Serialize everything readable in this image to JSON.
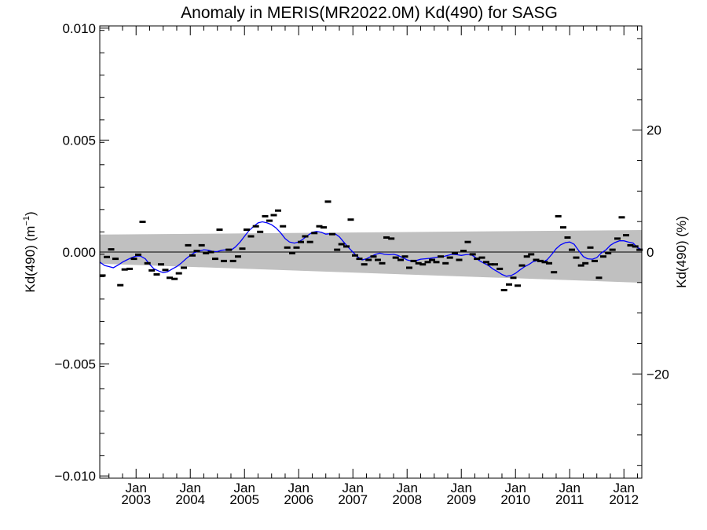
{
  "chart_data": {
    "type": "line",
    "title": "Anomaly in MERIS(MR2022.0M) Kd(490) for SASG",
    "ylabel_left": {
      "main": "Kd(490) (m",
      "sup": "−1",
      "close": ")"
    },
    "ylabel_right": "Kd(490) (%)",
    "xlim": [
      2002.33,
      2012.33
    ],
    "ylim": [
      -0.0101,
      0.0101
    ],
    "y2lim": [
      -37.1,
      37.1
    ],
    "yticks": [
      {
        "value": -0.01,
        "label": "−0.010"
      },
      {
        "value": -0.005,
        "label": "−0.005"
      },
      {
        "value": 0,
        "label": "0.000"
      },
      {
        "value": 0.005,
        "label": "0.005"
      },
      {
        "value": 0.01,
        "label": "0.010"
      }
    ],
    "y2ticks": [
      {
        "value": -20,
        "label": "−20"
      },
      {
        "value": 0,
        "label": "0"
      },
      {
        "value": 20,
        "label": "20"
      }
    ],
    "xticks": [
      {
        "value": 2003.0,
        "month": "Jan",
        "year": "2003"
      },
      {
        "value": 2004.0,
        "month": "Jan",
        "year": "2004"
      },
      {
        "value": 2005.0,
        "month": "Jan",
        "year": "2005"
      },
      {
        "value": 2006.0,
        "month": "Jan",
        "year": "2006"
      },
      {
        "value": 2007.0,
        "month": "Jan",
        "year": "2007"
      },
      {
        "value": 2008.0,
        "month": "Jan",
        "year": "2008"
      },
      {
        "value": 2009.0,
        "month": "Jan",
        "year": "2009"
      },
      {
        "value": 2010.0,
        "month": "Jan",
        "year": "2010"
      },
      {
        "value": 2011.0,
        "month": "Jan",
        "year": "2011"
      },
      {
        "value": 2012.0,
        "month": "Jan",
        "year": "2012"
      }
    ],
    "band": {
      "x": [
        2002.33,
        2012.33
      ],
      "upper": [
        0.00078,
        0.00098
      ],
      "lower": [
        -0.00052,
        -0.00137
      ],
      "color": "#c0c0c0"
    },
    "zero_line": 0,
    "monthly_anomalies": {
      "marker": "dash",
      "color": "#000000",
      "points": [
        [
          2002.38,
          -0.00105
        ],
        [
          2002.46,
          -0.00022
        ],
        [
          2002.54,
          0.00012
        ],
        [
          2002.62,
          -0.0003
        ],
        [
          2002.71,
          -0.00148
        ],
        [
          2002.79,
          -0.00078
        ],
        [
          2002.88,
          -0.00075
        ],
        [
          2002.96,
          -0.0003
        ],
        [
          2003.04,
          -0.00012
        ],
        [
          2003.12,
          0.00135
        ],
        [
          2003.21,
          -0.0005
        ],
        [
          2003.29,
          -0.00082
        ],
        [
          2003.38,
          -0.001
        ],
        [
          2003.46,
          -0.00055
        ],
        [
          2003.54,
          -0.0008
        ],
        [
          2003.62,
          -0.00115
        ],
        [
          2003.71,
          -0.0012
        ],
        [
          2003.79,
          -0.00095
        ],
        [
          2003.88,
          -0.0007
        ],
        [
          2003.96,
          0.0003
        ],
        [
          2004.04,
          -0.00015
        ],
        [
          2004.12,
          5e-05
        ],
        [
          2004.21,
          0.0003
        ],
        [
          2004.29,
          -5e-05
        ],
        [
          2004.38,
          0.0
        ],
        [
          2004.46,
          -0.0003
        ],
        [
          2004.54,
          0.001
        ],
        [
          2004.62,
          -0.0004
        ],
        [
          2004.71,
          0.0001
        ],
        [
          2004.79,
          -0.0004
        ],
        [
          2004.88,
          -0.0002
        ],
        [
          2004.96,
          0.00015
        ],
        [
          2005.04,
          0.001
        ],
        [
          2005.12,
          0.0007
        ],
        [
          2005.21,
          0.00115
        ],
        [
          2005.29,
          0.0009
        ],
        [
          2005.38,
          0.0016
        ],
        [
          2005.46,
          0.0014
        ],
        [
          2005.54,
          0.00165
        ],
        [
          2005.62,
          0.00185
        ],
        [
          2005.71,
          0.00115
        ],
        [
          2005.79,
          0.0002
        ],
        [
          2005.88,
          -5e-05
        ],
        [
          2005.96,
          0.0002
        ],
        [
          2006.04,
          0.00045
        ],
        [
          2006.12,
          0.0007
        ],
        [
          2006.21,
          0.00045
        ],
        [
          2006.29,
          0.00085
        ],
        [
          2006.38,
          0.00115
        ],
        [
          2006.46,
          0.0011
        ],
        [
          2006.54,
          0.00225
        ],
        [
          2006.62,
          0.0008
        ],
        [
          2006.71,
          0.0001
        ],
        [
          2006.79,
          0.00035
        ],
        [
          2006.88,
          0.00025
        ],
        [
          2006.96,
          0.00145
        ],
        [
          2007.04,
          -0.00015
        ],
        [
          2007.12,
          -0.0003
        ],
        [
          2007.21,
          -0.00055
        ],
        [
          2007.29,
          -0.00035
        ],
        [
          2007.38,
          -0.0002
        ],
        [
          2007.46,
          -0.00035
        ],
        [
          2007.54,
          -0.0005
        ],
        [
          2007.62,
          0.00065
        ],
        [
          2007.71,
          0.0006
        ],
        [
          2007.79,
          -0.00025
        ],
        [
          2007.88,
          -0.00035
        ],
        [
          2007.96,
          -0.0002
        ],
        [
          2008.04,
          -0.0007
        ],
        [
          2008.12,
          -0.0004
        ],
        [
          2008.21,
          -0.0005
        ],
        [
          2008.29,
          -0.00055
        ],
        [
          2008.38,
          -0.00045
        ],
        [
          2008.46,
          -0.00035
        ],
        [
          2008.54,
          -0.00045
        ],
        [
          2008.62,
          -0.0002
        ],
        [
          2008.71,
          -0.0005
        ],
        [
          2008.79,
          -0.00025
        ],
        [
          2008.88,
          -5e-05
        ],
        [
          2008.96,
          -0.00035
        ],
        [
          2009.04,
          5e-05
        ],
        [
          2009.12,
          0.00045
        ],
        [
          2009.21,
          -0.0001
        ],
        [
          2009.29,
          -0.0003
        ],
        [
          2009.38,
          -0.00025
        ],
        [
          2009.46,
          -0.00045
        ],
        [
          2009.54,
          -0.00055
        ],
        [
          2009.62,
          -0.00055
        ],
        [
          2009.71,
          -0.00075
        ],
        [
          2009.79,
          -0.0017
        ],
        [
          2009.88,
          -0.00145
        ],
        [
          2009.96,
          -0.00115
        ],
        [
          2010.04,
          -0.0015
        ],
        [
          2010.12,
          -0.0006
        ],
        [
          2010.21,
          -0.0002
        ],
        [
          2010.29,
          -0.0001
        ],
        [
          2010.38,
          -0.00035
        ],
        [
          2010.46,
          -0.0004
        ],
        [
          2010.54,
          -0.00045
        ],
        [
          2010.62,
          -0.0005
        ],
        [
          2010.71,
          -0.0009
        ],
        [
          2010.79,
          0.0016
        ],
        [
          2010.88,
          0.0011
        ],
        [
          2010.96,
          0.00065
        ],
        [
          2011.04,
          0.0001
        ],
        [
          2011.12,
          -0.00025
        ],
        [
          2011.21,
          -0.0006
        ],
        [
          2011.29,
          -0.0005
        ],
        [
          2011.38,
          0.0002
        ],
        [
          2011.46,
          -0.0004
        ],
        [
          2011.54,
          -0.00115
        ],
        [
          2011.62,
          -0.0002
        ],
        [
          2011.71,
          -5e-05
        ],
        [
          2011.79,
          0.0001
        ],
        [
          2011.88,
          0.0006
        ],
        [
          2011.96,
          0.00155
        ],
        [
          2012.04,
          0.00075
        ],
        [
          2012.12,
          0.0003
        ],
        [
          2012.21,
          0.00025
        ],
        [
          2012.29,
          0.0001
        ]
      ]
    },
    "smoothed_series": {
      "color": "#0000ff",
      "points": [
        [
          2002.33,
          -0.00045
        ],
        [
          2002.42,
          -0.0006
        ],
        [
          2002.5,
          -0.00065
        ],
        [
          2002.58,
          -0.0007
        ],
        [
          2002.67,
          -0.00058
        ],
        [
          2002.75,
          -0.00045
        ],
        [
          2002.83,
          -0.00035
        ],
        [
          2002.92,
          -0.00025
        ],
        [
          2003.0,
          -0.00018
        ],
        [
          2003.08,
          -0.00018
        ],
        [
          2003.17,
          -0.0003
        ],
        [
          2003.25,
          -0.00055
        ],
        [
          2003.33,
          -0.00075
        ],
        [
          2003.42,
          -0.00085
        ],
        [
          2003.5,
          -0.00092
        ],
        [
          2003.58,
          -0.00088
        ],
        [
          2003.67,
          -0.00075
        ],
        [
          2003.75,
          -0.00065
        ],
        [
          2003.83,
          -0.0005
        ],
        [
          2003.92,
          -0.0003
        ],
        [
          2004.0,
          -0.00015
        ],
        [
          2004.08,
          -2e-05
        ],
        [
          2004.17,
          5e-05
        ],
        [
          2004.25,
          0.0001
        ],
        [
          2004.33,
          8e-05
        ],
        [
          2004.42,
          2e-05
        ],
        [
          2004.5,
          2e-05
        ],
        [
          2004.58,
          8e-05
        ],
        [
          2004.67,
          0.0001
        ],
        [
          2004.75,
          8e-05
        ],
        [
          2004.83,
          0.00022
        ],
        [
          2004.92,
          0.00045
        ],
        [
          2005.0,
          0.0007
        ],
        [
          2005.08,
          0.00095
        ],
        [
          2005.17,
          0.00115
        ],
        [
          2005.25,
          0.0013
        ],
        [
          2005.33,
          0.00135
        ],
        [
          2005.42,
          0.0013
        ],
        [
          2005.5,
          0.00122
        ],
        [
          2005.58,
          0.00108
        ],
        [
          2005.67,
          0.00085
        ],
        [
          2005.75,
          0.0006
        ],
        [
          2005.83,
          0.00045
        ],
        [
          2005.92,
          0.0004
        ],
        [
          2006.0,
          0.00045
        ],
        [
          2006.08,
          0.00058
        ],
        [
          2006.17,
          0.00075
        ],
        [
          2006.25,
          0.00088
        ],
        [
          2006.33,
          0.00092
        ],
        [
          2006.42,
          0.00088
        ],
        [
          2006.5,
          0.0008
        ],
        [
          2006.58,
          0.00082
        ],
        [
          2006.67,
          0.00082
        ],
        [
          2006.75,
          0.00068
        ],
        [
          2006.83,
          0.00045
        ],
        [
          2006.92,
          0.0002
        ],
        [
          2007.0,
          0.0
        ],
        [
          2007.08,
          -0.0002
        ],
        [
          2007.17,
          -0.00035
        ],
        [
          2007.25,
          -0.0003
        ],
        [
          2007.33,
          -0.0002
        ],
        [
          2007.42,
          -0.0001
        ],
        [
          2007.5,
          -5e-05
        ],
        [
          2007.58,
          -0.0001
        ],
        [
          2007.67,
          -0.00012
        ],
        [
          2007.75,
          -0.0001
        ],
        [
          2007.83,
          -0.00015
        ],
        [
          2007.92,
          -0.00025
        ],
        [
          2008.0,
          -0.00035
        ],
        [
          2008.08,
          -0.0004
        ],
        [
          2008.17,
          -0.00038
        ],
        [
          2008.25,
          -0.00032
        ],
        [
          2008.33,
          -0.0003
        ],
        [
          2008.42,
          -0.00028
        ],
        [
          2008.5,
          -0.00025
        ],
        [
          2008.58,
          -0.00022
        ],
        [
          2008.67,
          -0.0002
        ],
        [
          2008.75,
          -0.00015
        ],
        [
          2008.83,
          -0.0001
        ],
        [
          2008.92,
          -0.00012
        ],
        [
          2009.0,
          -0.00015
        ],
        [
          2009.08,
          -0.00012
        ],
        [
          2009.17,
          -0.0001
        ],
        [
          2009.25,
          -0.00022
        ],
        [
          2009.33,
          -0.00038
        ],
        [
          2009.42,
          -0.0005
        ],
        [
          2009.5,
          -0.0006
        ],
        [
          2009.58,
          -0.00075
        ],
        [
          2009.67,
          -0.00088
        ],
        [
          2009.75,
          -0.001
        ],
        [
          2009.83,
          -0.00108
        ],
        [
          2009.92,
          -0.00105
        ],
        [
          2010.0,
          -0.00095
        ],
        [
          2010.08,
          -0.0008
        ],
        [
          2010.17,
          -0.00065
        ],
        [
          2010.25,
          -0.00055
        ],
        [
          2010.33,
          -0.00042
        ],
        [
          2010.42,
          -0.00038
        ],
        [
          2010.5,
          -0.00045
        ],
        [
          2010.58,
          -0.00035
        ],
        [
          2010.67,
          -0.0001
        ],
        [
          2010.75,
          0.00015
        ],
        [
          2010.83,
          0.00032
        ],
        [
          2010.92,
          0.00042
        ],
        [
          2011.0,
          0.00045
        ],
        [
          2011.08,
          0.00035
        ],
        [
          2011.17,
          5e-05
        ],
        [
          2011.25,
          -0.0002
        ],
        [
          2011.33,
          -0.0003
        ],
        [
          2011.42,
          -0.00032
        ],
        [
          2011.5,
          -0.00025
        ],
        [
          2011.58,
          -5e-05
        ],
        [
          2011.67,
          0.0001
        ],
        [
          2011.75,
          0.0003
        ],
        [
          2011.83,
          0.00042
        ],
        [
          2011.92,
          0.0005
        ],
        [
          2012.0,
          0.0005
        ],
        [
          2012.08,
          0.00045
        ],
        [
          2012.17,
          0.0004
        ],
        [
          2012.25,
          0.0002
        ],
        [
          2012.33,
          0.0001
        ]
      ]
    }
  }
}
